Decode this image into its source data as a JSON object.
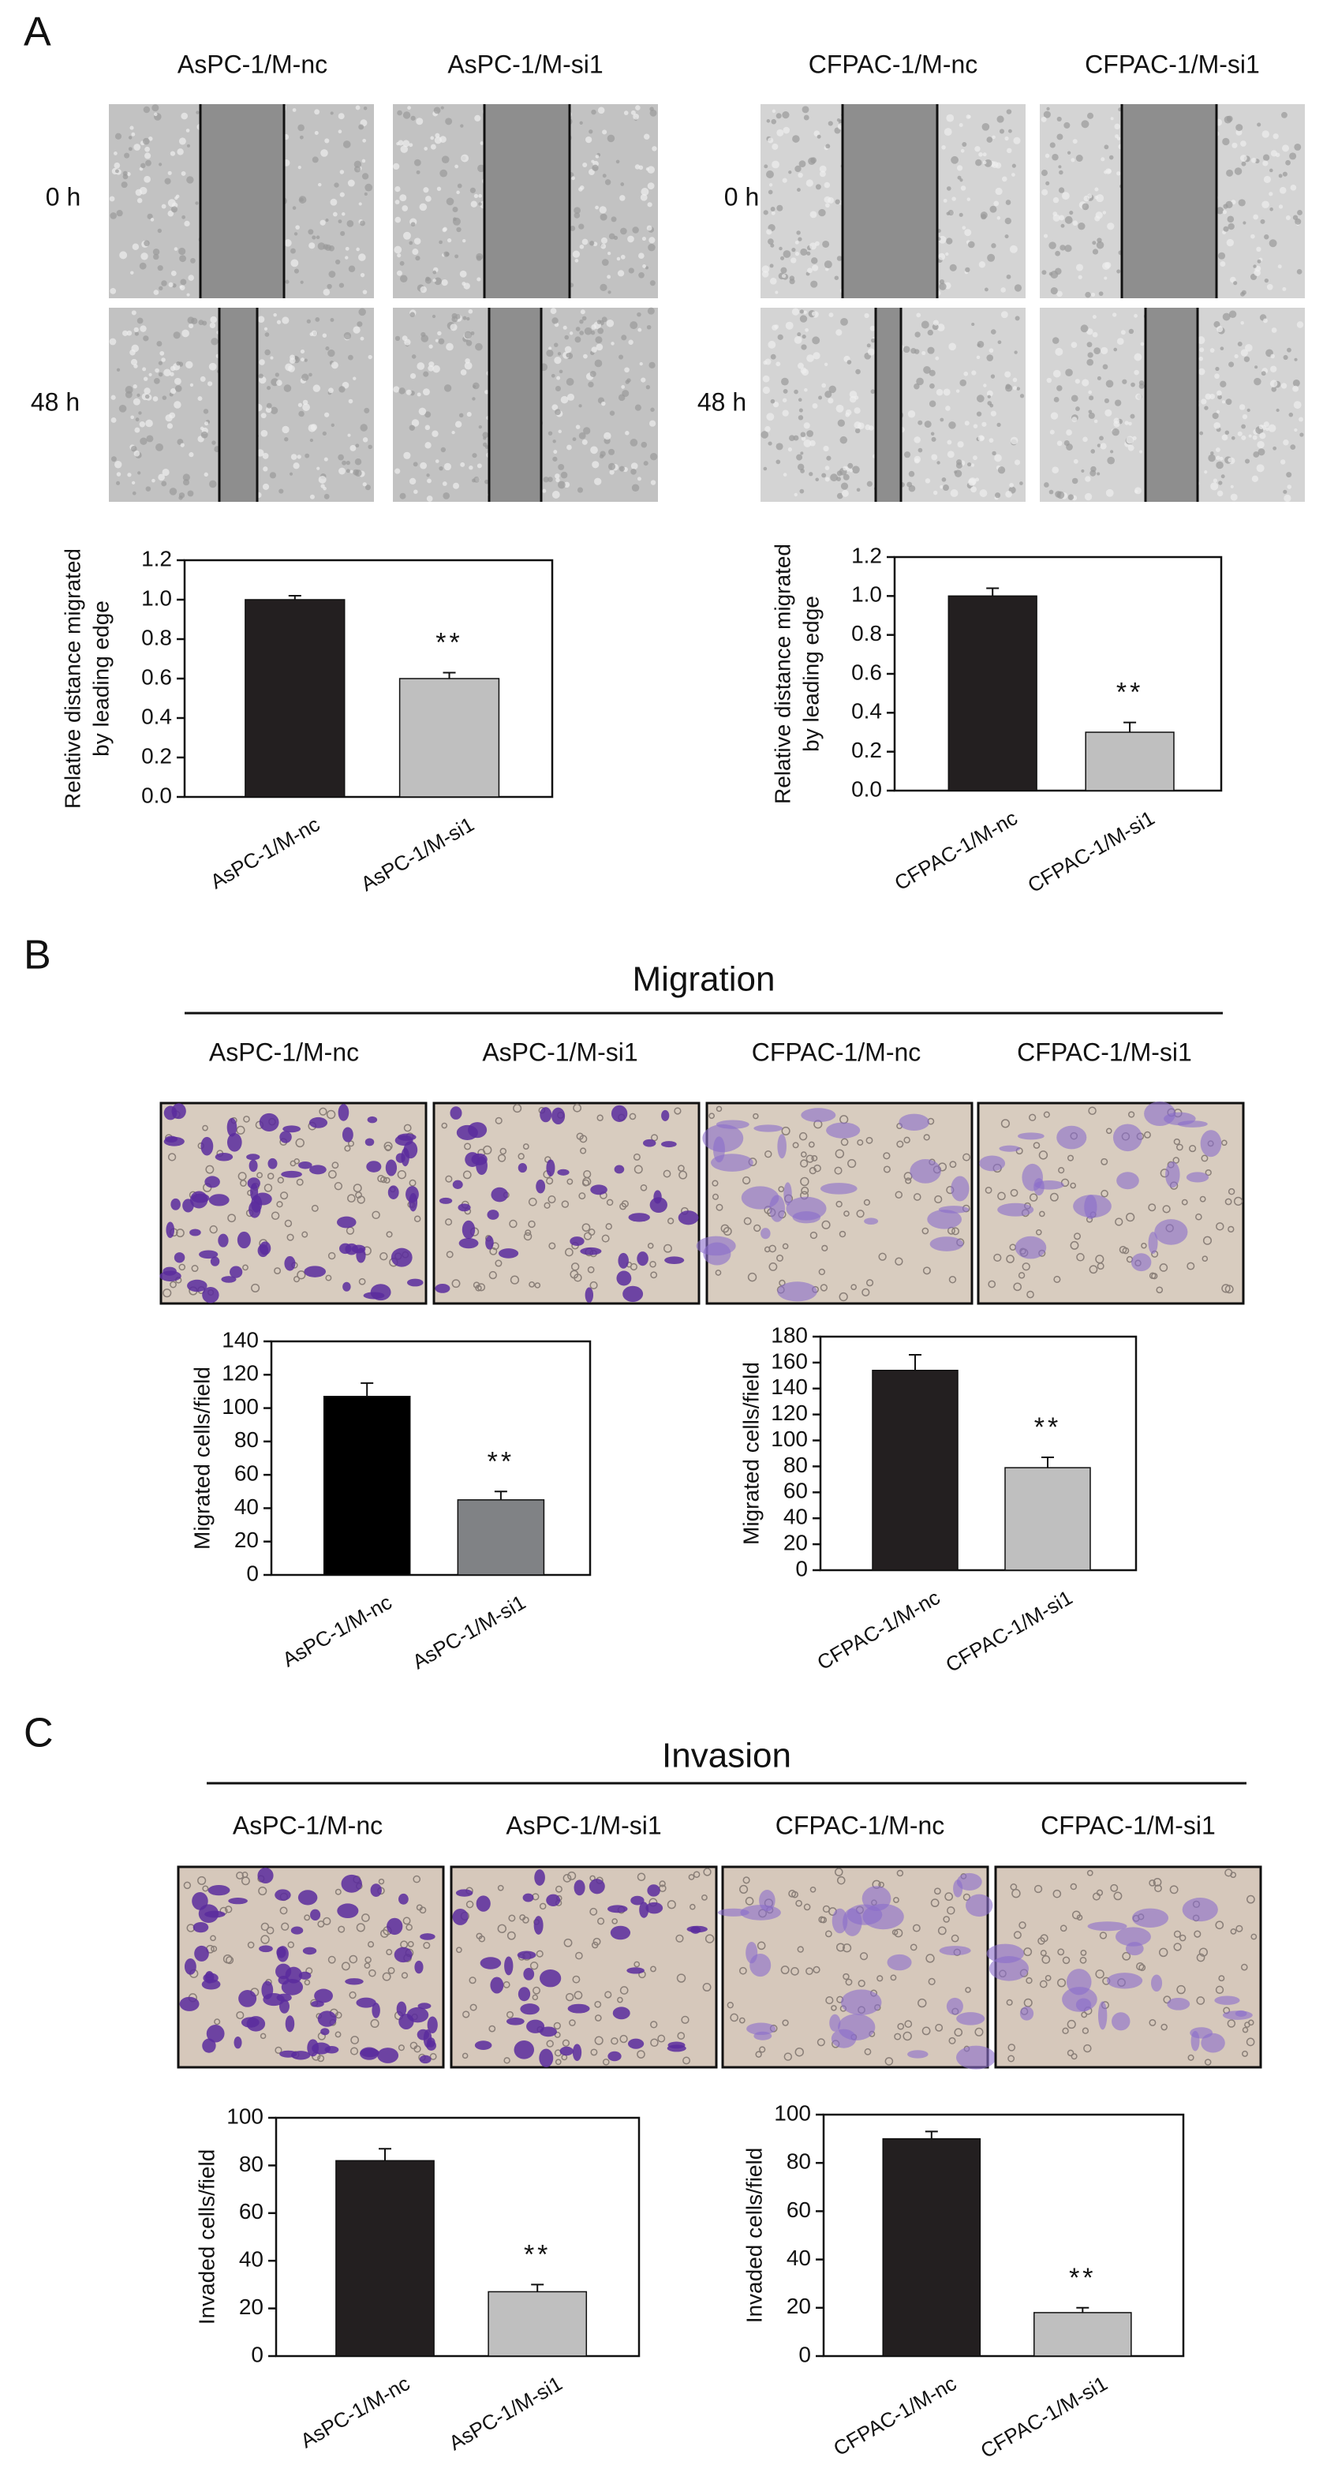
{
  "panel_labels": [
    "A",
    "B",
    "C"
  ],
  "panel_a": {
    "column_labels": [
      "AsPC-1/M-nc",
      "AsPC-1/M-si1",
      "CFPAC-1/M-nc",
      "CFPAC-1/M-si1"
    ],
    "row_labels": [
      "0 h",
      "48 h"
    ]
  },
  "panel_b": {
    "title": "Migration",
    "column_labels": [
      "AsPC-1/M-nc",
      "AsPC-1/M-si1",
      "CFPAC-1/M-nc",
      "CFPAC-1/M-si1"
    ]
  },
  "panel_c": {
    "title": "Invasion",
    "column_labels": [
      "AsPC-1/M-nc",
      "AsPC-1/M-si1",
      "CFPAC-1/M-nc",
      "CFPAC-1/M-si1"
    ]
  },
  "chart_data": [
    {
      "type": "bar",
      "y_label": [
        "Relative distance migrated",
        "by leading edge"
      ],
      "categories": [
        "AsPC-1/M-nc",
        "AsPC-1/M-si1"
      ],
      "values": [
        1.0,
        0.6
      ],
      "errors": [
        0.02,
        0.03
      ],
      "colors": [
        "#231f20",
        "#bfbfbf"
      ],
      "ylim": [
        0,
        1.2
      ],
      "yticks": [
        {
          "value": 0,
          "label": "0.0"
        },
        0.2,
        0.4,
        0.6,
        0.8,
        {
          "value": 1,
          "label": "1.0"
        },
        1.2
      ],
      "annotation": "**"
    },
    {
      "type": "bar",
      "y_label": [
        "Relative distance migrated",
        "by leading edge"
      ],
      "categories": [
        "CFPAC-1/M-nc",
        "CFPAC-1/M-si1"
      ],
      "values": [
        1.0,
        0.3
      ],
      "errors": [
        0.04,
        0.05
      ],
      "colors": [
        "#231f20",
        "#bfbfbf"
      ],
      "ylim": [
        0,
        1.2
      ],
      "yticks": [
        {
          "value": 0,
          "label": "0.0"
        },
        0.2,
        0.4,
        0.6,
        0.8,
        {
          "value": 1,
          "label": "1.0"
        },
        1.2
      ],
      "annotation": "**"
    },
    {
      "type": "bar",
      "y_label": [
        "Migrated cells/field"
      ],
      "categories": [
        "AsPC-1/M-nc",
        "AsPC-1/M-si1"
      ],
      "values": [
        107,
        45
      ],
      "errors": [
        8,
        5
      ],
      "colors": [
        "#000000",
        "#808285"
      ],
      "ylim": [
        0,
        140
      ],
      "yticks": [
        0,
        20,
        40,
        60,
        80,
        100,
        120,
        140
      ],
      "annotation": "**"
    },
    {
      "type": "bar",
      "y_label": [
        "Migrated cells/field"
      ],
      "categories": [
        "CFPAC-1/M-nc",
        "CFPAC-1/M-si1"
      ],
      "values": [
        154,
        79
      ],
      "errors": [
        12,
        8
      ],
      "colors": [
        "#231f20",
        "#bfbfbf"
      ],
      "ylim": [
        0,
        180
      ],
      "yticks": [
        0,
        20,
        40,
        60,
        80,
        100,
        120,
        140,
        160,
        180
      ],
      "annotation": "**"
    },
    {
      "type": "bar",
      "y_label": [
        "Invaded cells/field"
      ],
      "categories": [
        "AsPC-1/M-nc",
        "AsPC-1/M-si1"
      ],
      "values": [
        82,
        27
      ],
      "errors": [
        5,
        3
      ],
      "colors": [
        "#231f20",
        "#bfbfbf"
      ],
      "ylim": [
        0,
        100
      ],
      "yticks": [
        0,
        20,
        40,
        60,
        80,
        100
      ],
      "annotation": "**"
    },
    {
      "type": "bar",
      "y_label": [
        "Invaded cells/field"
      ],
      "categories": [
        "CFPAC-1/M-nc",
        "CFPAC-1/M-si1"
      ],
      "values": [
        90,
        18
      ],
      "errors": [
        3,
        2
      ],
      "colors": [
        "#231f20",
        "#bfbfbf"
      ],
      "ylim": [
        0,
        100
      ],
      "yticks": [
        0,
        20,
        40,
        60,
        80,
        100
      ],
      "annotation": "**"
    }
  ]
}
